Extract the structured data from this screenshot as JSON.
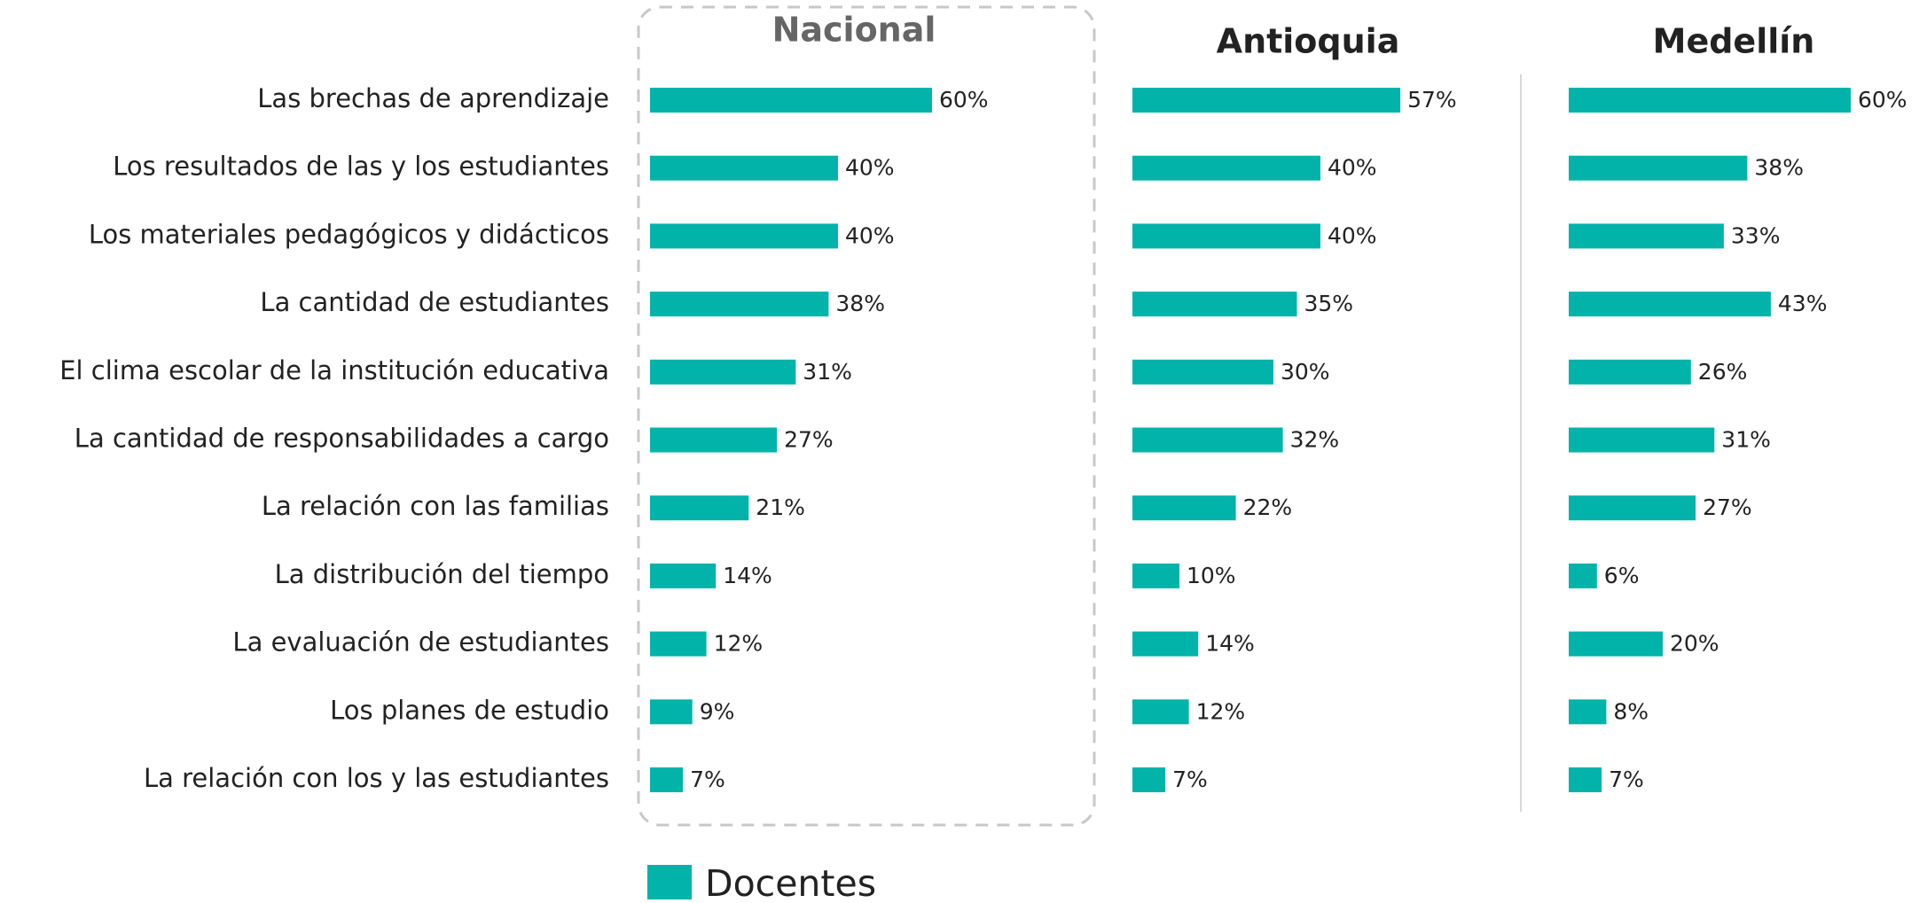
{
  "chart_data": {
    "type": "bar",
    "orientation": "horizontal",
    "color": "#02b3aa",
    "categories": [
      "Las brechas de aprendizaje",
      "Los resultados de las y los estudiantes",
      "Los materiales pedagógicos y didácticos",
      "La cantidad de estudiantes",
      "El clima escolar de la institución educativa",
      "La cantidad de responsabilidades a cargo",
      "La relación con las familias",
      "La distribución del tiempo",
      "La evaluación de estudiantes",
      "Los planes de estudio",
      "La relación con los y las estudiantes"
    ],
    "panels": [
      {
        "title": "Nacional",
        "values": [
          60,
          40,
          40,
          38,
          31,
          27,
          21,
          14,
          12,
          9,
          7
        ],
        "value_labels": [
          "60%",
          "40%",
          "40%",
          "38%",
          "31%",
          "27%",
          "21%",
          "14%",
          "12%",
          "9%",
          "7%"
        ]
      },
      {
        "title": "Antioquia",
        "values": [
          57,
          40,
          40,
          35,
          30,
          32,
          22,
          10,
          14,
          12,
          7
        ],
        "value_labels": [
          "57%",
          "40%",
          "40%",
          "35%",
          "30%",
          "32%",
          "22%",
          "10%",
          "14%",
          "12%",
          "7%"
        ]
      },
      {
        "title": "Medellín",
        "values": [
          60,
          38,
          33,
          43,
          26,
          31,
          27,
          6,
          20,
          8,
          7
        ],
        "value_labels": [
          "60%",
          "38%",
          "33%",
          "43%",
          "26%",
          "31%",
          "27%",
          "6%",
          "20%",
          "8%",
          "7%"
        ]
      }
    ],
    "legend": "Docentes"
  }
}
